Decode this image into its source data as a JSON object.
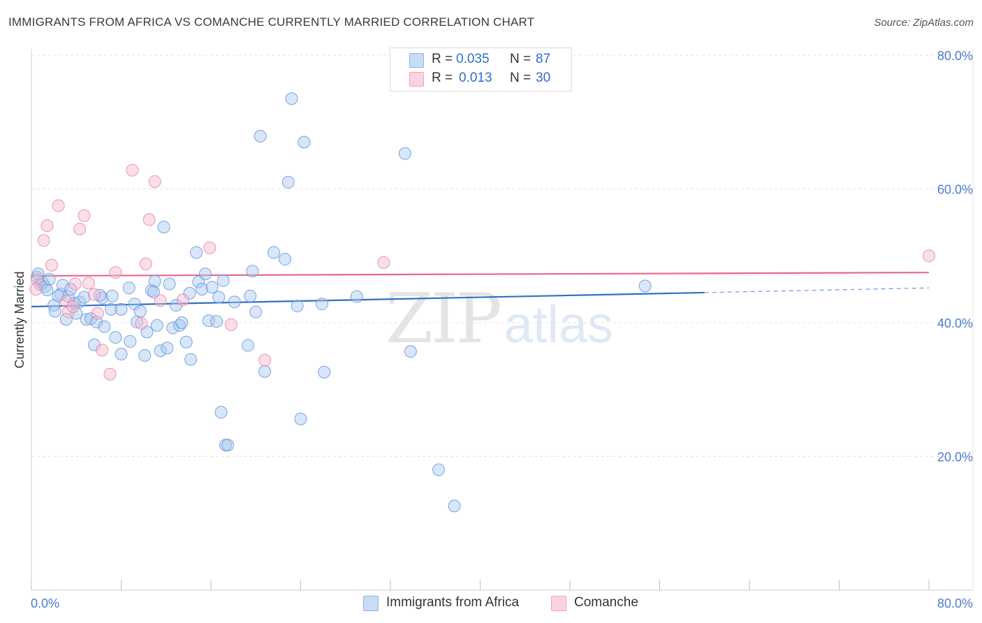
{
  "header": {
    "title": "IMMIGRANTS FROM AFRICA VS COMANCHE CURRENTLY MARRIED CORRELATION CHART",
    "source": "Source: ZipAtlas.com"
  },
  "watermark": {
    "zip": "ZIP",
    "atlas": "atlas"
  },
  "legend": {
    "rows": [
      {
        "r_label": "R =",
        "r_value": "0.035",
        "n_label": "N =",
        "n_value": "87",
        "color": "#a9c8f2"
      },
      {
        "r_label": "R =",
        "r_value": "0.013",
        "n_label": "N =",
        "n_value": "30",
        "color": "#f7b8cb"
      }
    ]
  },
  "bottom_legend": [
    {
      "label": "Immigrants from Africa",
      "color": "#a9c8f2"
    },
    {
      "label": "Comanche",
      "color": "#f7b8cb"
    }
  ],
  "chart_data": {
    "type": "scatter",
    "title": "IMMIGRANTS FROM AFRICA VS COMANCHE CURRENTLY MARRIED CORRELATION CHART",
    "xlabel": "",
    "ylabel": "Currently Married",
    "xlim": [
      0,
      83
    ],
    "ylim": [
      0,
      83
    ],
    "x_tick_labels": [
      "0.0%",
      "80.0%"
    ],
    "y_ticks": [
      {
        "value": 20,
        "label": "20.0%"
      },
      {
        "value": 40,
        "label": "40.0%"
      },
      {
        "value": 60,
        "label": "60.0%"
      },
      {
        "value": 80,
        "label": "80.0%"
      }
    ],
    "x_minor_ticks": [
      0,
      8,
      16,
      24,
      32,
      40,
      48,
      56,
      64,
      72,
      80
    ],
    "grid": true,
    "series": [
      {
        "name": "Immigrants from Africa",
        "color": "#a9c8f2",
        "stroke": "#6f9bd8",
        "trend": {
          "x0": 0,
          "y0": 42.4,
          "x1": 60,
          "y1": 44.5,
          "dash_x1": 80,
          "dash_y1": 45.2,
          "color": "#2f6fc7"
        },
        "points": [
          [
            0.5,
            46.8
          ],
          [
            0.8,
            45.7
          ],
          [
            1.0,
            46.0
          ],
          [
            1.2,
            45.4
          ],
          [
            0.6,
            47.3
          ],
          [
            1.4,
            44.9
          ],
          [
            2.0,
            42.6
          ],
          [
            2.1,
            41.7
          ],
          [
            2.6,
            44.3
          ],
          [
            2.8,
            45.6
          ],
          [
            3.3,
            43.9
          ],
          [
            3.1,
            40.5
          ],
          [
            3.5,
            45.0
          ],
          [
            3.8,
            42.9
          ],
          [
            4.3,
            43.1
          ],
          [
            4.7,
            43.8
          ],
          [
            4.9,
            40.5
          ],
          [
            5.3,
            40.6
          ],
          [
            5.6,
            36.7
          ],
          [
            5.8,
            40.1
          ],
          [
            6.3,
            43.7
          ],
          [
            6.5,
            39.4
          ],
          [
            7.1,
            42.0
          ],
          [
            7.2,
            44.0
          ],
          [
            7.5,
            37.8
          ],
          [
            8.0,
            42.0
          ],
          [
            8.0,
            35.3
          ],
          [
            8.7,
            45.2
          ],
          [
            8.8,
            37.2
          ],
          [
            9.2,
            42.8
          ],
          [
            9.7,
            41.7
          ],
          [
            10.1,
            35.1
          ],
          [
            10.3,
            38.6
          ],
          [
            10.7,
            44.8
          ],
          [
            11.0,
            46.2
          ],
          [
            11.2,
            39.6
          ],
          [
            11.5,
            35.8
          ],
          [
            11.8,
            54.3
          ],
          [
            12.1,
            36.2
          ],
          [
            12.3,
            45.8
          ],
          [
            12.6,
            39.2
          ],
          [
            12.9,
            42.6
          ],
          [
            13.2,
            39.6
          ],
          [
            13.8,
            37.1
          ],
          [
            14.1,
            44.4
          ],
          [
            14.2,
            34.5
          ],
          [
            14.7,
            50.5
          ],
          [
            14.9,
            46.1
          ],
          [
            15.2,
            45.0
          ],
          [
            15.5,
            47.3
          ],
          [
            15.8,
            40.3
          ],
          [
            16.1,
            45.3
          ],
          [
            16.5,
            40.2
          ],
          [
            16.7,
            43.8
          ],
          [
            16.9,
            26.6
          ],
          [
            17.3,
            21.7
          ],
          [
            17.1,
            46.3
          ],
          [
            17.5,
            21.7
          ],
          [
            18.1,
            43.1
          ],
          [
            19.3,
            36.6
          ],
          [
            19.5,
            44.0
          ],
          [
            19.7,
            47.7
          ],
          [
            20.0,
            41.6
          ],
          [
            20.4,
            67.9
          ],
          [
            20.8,
            32.7
          ],
          [
            21.6,
            50.5
          ],
          [
            22.6,
            49.5
          ],
          [
            22.9,
            61.0
          ],
          [
            23.2,
            73.5
          ],
          [
            23.7,
            42.5
          ],
          [
            24.0,
            25.6
          ],
          [
            24.3,
            67.0
          ],
          [
            25.9,
            42.8
          ],
          [
            26.1,
            32.6
          ],
          [
            29.0,
            43.9
          ],
          [
            33.3,
            65.3
          ],
          [
            33.8,
            35.7
          ],
          [
            36.3,
            18.0
          ],
          [
            37.7,
            12.6
          ],
          [
            54.7,
            45.5
          ],
          [
            1.6,
            46.5
          ],
          [
            2.4,
            44.0
          ],
          [
            6.1,
            44.1
          ],
          [
            9.4,
            40.1
          ],
          [
            13.4,
            40.0
          ],
          [
            4.0,
            41.4
          ],
          [
            10.9,
            44.6
          ]
        ]
      },
      {
        "name": "Comanche",
        "color": "#f7b8cb",
        "stroke": "#e58aa7",
        "trend": {
          "x0": 0,
          "y0": 47.0,
          "x1": 80,
          "y1": 47.5,
          "color": "#e8678e"
        },
        "points": [
          [
            0.5,
            46.4
          ],
          [
            0.4,
            45.0
          ],
          [
            1.1,
            52.3
          ],
          [
            1.4,
            54.5
          ],
          [
            1.8,
            48.6
          ],
          [
            2.4,
            57.5
          ],
          [
            3.1,
            43.2
          ],
          [
            3.3,
            41.6
          ],
          [
            3.7,
            42.4
          ],
          [
            3.9,
            45.8
          ],
          [
            4.3,
            54.0
          ],
          [
            4.7,
            56.0
          ],
          [
            5.1,
            45.9
          ],
          [
            5.6,
            44.2
          ],
          [
            5.9,
            41.4
          ],
          [
            6.3,
            35.9
          ],
          [
            7.0,
            32.3
          ],
          [
            7.5,
            47.5
          ],
          [
            9.0,
            62.8
          ],
          [
            9.8,
            39.9
          ],
          [
            10.2,
            48.8
          ],
          [
            10.5,
            55.4
          ],
          [
            11.0,
            61.1
          ],
          [
            11.5,
            43.3
          ],
          [
            13.5,
            43.4
          ],
          [
            15.9,
            51.2
          ],
          [
            17.8,
            39.7
          ],
          [
            20.8,
            34.4
          ],
          [
            31.4,
            49.0
          ],
          [
            80.0,
            50.0
          ]
        ]
      }
    ]
  }
}
